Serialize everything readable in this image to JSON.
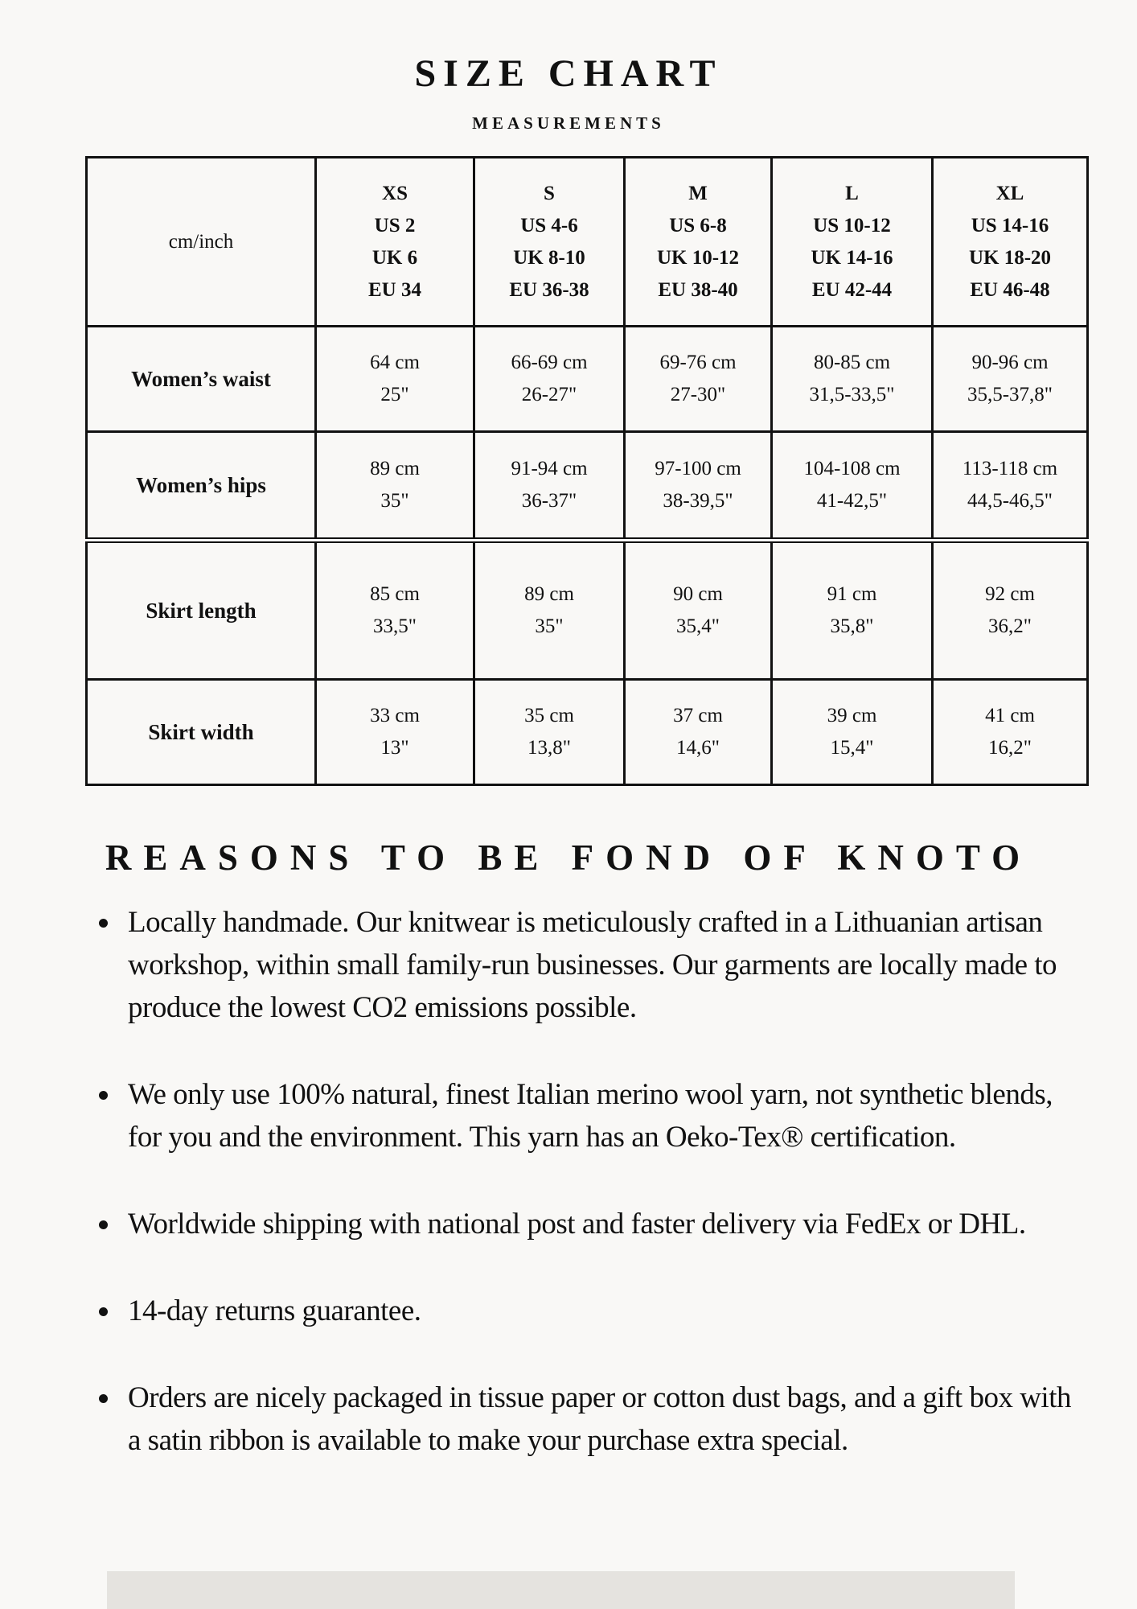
{
  "header": {
    "title": "SIZE CHART",
    "subtitle": "MEASUREMENTS"
  },
  "table": {
    "corner": "cm/inch",
    "sizes": [
      {
        "size": "XS",
        "us": "US 2",
        "uk": "UK 6",
        "eu": "EU 34"
      },
      {
        "size": "S",
        "us": "US 4-6",
        "uk": "UK 8-10",
        "eu": "EU 36-38"
      },
      {
        "size": "M",
        "us": "US 6-8",
        "uk": "UK 10-12",
        "eu": "EU 38-40"
      },
      {
        "size": "L",
        "us": "US 10-12",
        "uk": "UK 14-16",
        "eu": "EU 42-44"
      },
      {
        "size": "XL",
        "us": "US 14-16",
        "uk": "UK 18-20",
        "eu": "EU 46-48"
      }
    ],
    "rows": [
      {
        "label": "Women’s waist",
        "cells": [
          [
            "64 cm",
            "25\""
          ],
          [
            "66-69 cm",
            "26-27\""
          ],
          [
            "69-76 cm",
            "27-30\""
          ],
          [
            "80-85 cm",
            "31,5-33,5\""
          ],
          [
            "90-96 cm",
            "35,5-37,8\""
          ]
        ]
      },
      {
        "label": "Women’s hips",
        "cells": [
          [
            "89 cm",
            "35\""
          ],
          [
            "91-94 cm",
            "36-37\""
          ],
          [
            "97-100 cm",
            "38-39,5\""
          ],
          [
            "104-108 cm",
            "41-42,5\""
          ],
          [
            "113-118 cm",
            "44,5-46,5\""
          ]
        ]
      },
      {
        "label": "Skirt length",
        "cells": [
          [
            "85 cm",
            "33,5\""
          ],
          [
            "89 cm",
            "35\""
          ],
          [
            "90 cm",
            "35,4\""
          ],
          [
            "91 cm",
            "35,8\""
          ],
          [
            "92 cm",
            "36,2\""
          ]
        ]
      },
      {
        "label": "Skirt width",
        "cells": [
          [
            "33 cm",
            "13\""
          ],
          [
            "35 cm",
            "13,8\""
          ],
          [
            "37 cm",
            "14,6\""
          ],
          [
            "39 cm",
            "15,4\""
          ],
          [
            "41 cm",
            "16,2\""
          ]
        ]
      }
    ]
  },
  "reasons": {
    "title": "REASONS TO BE FOND OF KNOTO",
    "items": [
      "Locally handmade. Our knitwear is meticulously crafted in a Lithuanian artisan workshop, within small family-run businesses. Our garments are locally made to produce the lowest CO2 emissions possible.",
      "We only use 100% natural, finest Italian merino wool yarn, not synthetic blends, for you and the environment. This yarn has an Oeko-Tex® certification.",
      "Worldwide shipping with national post and faster delivery via FedEx or DHL.",
      "14-day returns guarantee.",
      "Orders are nicely packaged in tissue paper or cotton dust bags, and a gift box with a satin ribbon is available to make your purchase extra special."
    ]
  }
}
